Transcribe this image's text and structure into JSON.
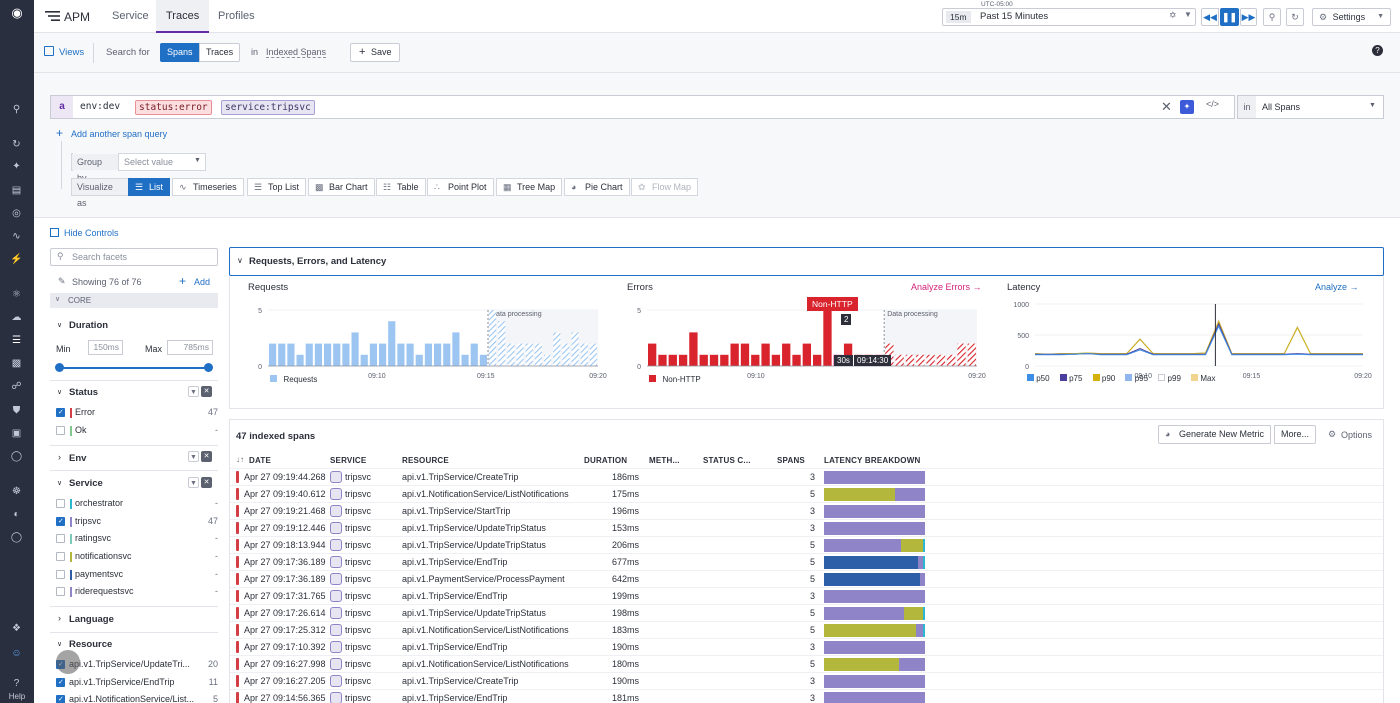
{
  "nav": {
    "help_label": "Help"
  },
  "topbar": {
    "app_title": "APM",
    "tabs": [
      {
        "label": "Service"
      },
      {
        "label": "Traces"
      },
      {
        "label": "Profiles"
      }
    ],
    "timezone": "UTC-05:00",
    "time_badge": "15m",
    "time_range": "Past 15 Minutes",
    "settings_label": "Settings"
  },
  "searchbar": {
    "views_label": "Views",
    "search_for_label": "Search for",
    "spans_label": "Spans",
    "traces_label": "Traces",
    "in_label": "in",
    "index_label": "Indexed Spans",
    "save_label": "Save"
  },
  "query": {
    "letter": "a",
    "tokens": [
      "env:dev",
      "status:error",
      "service:tripsvc"
    ],
    "in_label": "in",
    "scope_value": "All Spans",
    "add_query_label": "Add another span query",
    "group_by_label": "Group by",
    "group_by_placeholder": "Select value",
    "visualize_label": "Visualize as",
    "viz_options": [
      "List",
      "Timeseries",
      "Top List",
      "Bar Chart",
      "Table",
      "Point Plot",
      "Tree Map",
      "Pie Chart",
      "Flow Map"
    ]
  },
  "facets": {
    "hide_controls_label": "Hide Controls",
    "search_placeholder": "Search facets",
    "showing_label": "Showing 76 of 76",
    "add_label": "Add",
    "core_label": "CORE",
    "duration": {
      "title": "Duration",
      "min_label": "Min",
      "max_label": "Max",
      "min_value": "150ms",
      "max_value": "785ms"
    },
    "status": {
      "title": "Status",
      "items": [
        {
          "label": "Error",
          "count": "47",
          "checked": true,
          "color": "#d33d45"
        },
        {
          "label": "Ok",
          "count": "-",
          "checked": false,
          "color": "#7fc98d"
        }
      ]
    },
    "env": {
      "title": "Env"
    },
    "service": {
      "title": "Service",
      "items": [
        {
          "label": "orchestrator",
          "count": "-",
          "checked": false,
          "color": "#2bb7d1"
        },
        {
          "label": "tripsvc",
          "count": "47",
          "checked": true,
          "color": "#8f84c7"
        },
        {
          "label": "ratingsvc",
          "count": "-",
          "checked": false,
          "color": "#7fc9b8"
        },
        {
          "label": "notificationsvc",
          "count": "-",
          "checked": false,
          "color": "#b3b83c"
        },
        {
          "label": "paymentsvc",
          "count": "-",
          "checked": false,
          "color": "#2c5fa8"
        },
        {
          "label": "riderequestsvc",
          "count": "-",
          "checked": false,
          "color": "#8f84c7"
        }
      ]
    },
    "language": {
      "title": "Language"
    },
    "resource": {
      "title": "Resource",
      "items": [
        {
          "label": "api.v1.TripService/UpdateTri...",
          "count": "20"
        },
        {
          "label": "api.v1.TripService/EndTrip",
          "count": "11"
        },
        {
          "label": "api.v1.NotificationService/List...",
          "count": "5"
        }
      ]
    }
  },
  "charts_panel": {
    "title": "Requests, Errors, and Latency",
    "requests": {
      "title": "Requests",
      "legend": "Requests",
      "processing_label": "Data processing"
    },
    "errors": {
      "title": "Errors",
      "link": "Analyze Errors",
      "legend": "Non-HTTP",
      "processing_label": "Data processing",
      "tooltip_title": "Non-HTTP",
      "tooltip_value": "2",
      "tooltip_interval": "30s",
      "tooltip_time": "09:14:30"
    },
    "latency": {
      "title": "Latency",
      "link": "Analyze",
      "legend": [
        "p50",
        "p75",
        "p90",
        "p95",
        "p99",
        "Max"
      ]
    }
  },
  "chart_data": [
    {
      "type": "bar",
      "title": "Requests",
      "x_ticks": [
        "09:10",
        "09:15",
        "09:20"
      ],
      "ylim": [
        0,
        5
      ],
      "y_ticks": [
        "0",
        "5"
      ],
      "series": [
        {
          "name": "Requests",
          "values": [
            2,
            2,
            2,
            1,
            2,
            2,
            2,
            2,
            2,
            3,
            1,
            2,
            2,
            4,
            2,
            2,
            1,
            2,
            2,
            2,
            3,
            1,
            2,
            1,
            5,
            4,
            2,
            2,
            2,
            2,
            1,
            3,
            2,
            3,
            2,
            2
          ]
        }
      ],
      "processing_from_index": 24
    },
    {
      "type": "bar",
      "title": "Errors",
      "x_ticks": [
        "09:10",
        "09:20"
      ],
      "ylim": [
        0,
        5
      ],
      "y_ticks": [
        "0",
        "5"
      ],
      "series": [
        {
          "name": "Non-HTTP",
          "values": [
            2,
            1,
            1,
            1,
            3,
            1,
            1,
            1,
            2,
            2,
            1,
            2,
            1,
            2,
            1,
            2,
            1,
            5,
            1,
            2,
            1,
            1,
            1,
            2,
            1,
            1,
            1,
            1,
            1,
            1,
            2,
            2
          ]
        }
      ],
      "processing_from_index": 23
    },
    {
      "type": "line",
      "title": "Latency",
      "x_ticks": [
        "09:10",
        "09:15",
        "09:20"
      ],
      "ylim": [
        0,
        1000
      ],
      "y_ticks": [
        "0",
        "500",
        "1000"
      ],
      "series": [
        {
          "name": "p50",
          "values": [
            180,
            180,
            180,
            190,
            200,
            180,
            180,
            180,
            260,
            180,
            180,
            180,
            180,
            180,
            640,
            180,
            180,
            180,
            180,
            180,
            190,
            180,
            180,
            180,
            180,
            180
          ]
        },
        {
          "name": "p75",
          "values": [
            190,
            190,
            190,
            190,
            200,
            190,
            190,
            190,
            280,
            190,
            190,
            190,
            190,
            190,
            680,
            190,
            190,
            190,
            190,
            190,
            200,
            190,
            190,
            190,
            190,
            190
          ]
        },
        {
          "name": "p90",
          "values": [
            200,
            190,
            200,
            200,
            210,
            200,
            200,
            200,
            430,
            200,
            200,
            200,
            200,
            210,
            720,
            200,
            200,
            200,
            200,
            200,
            620,
            200,
            200,
            200,
            200,
            200
          ]
        },
        {
          "name": "p95",
          "values": [
            200,
            190,
            200,
            200,
            210,
            200,
            200,
            200,
            430,
            200,
            200,
            200,
            200,
            210,
            720,
            200,
            200,
            200,
            200,
            200,
            620,
            200,
            200,
            200,
            200,
            200
          ]
        },
        {
          "name": "p99",
          "values": [
            200,
            190,
            200,
            200,
            210,
            200,
            200,
            200,
            440,
            200,
            200,
            200,
            200,
            210,
            730,
            200,
            200,
            200,
            200,
            200,
            630,
            200,
            200,
            200,
            200,
            200
          ]
        },
        {
          "name": "Max",
          "values": [
            200,
            190,
            200,
            200,
            210,
            200,
            200,
            200,
            440,
            200,
            200,
            200,
            200,
            210,
            735,
            200,
            200,
            200,
            200,
            200,
            635,
            200,
            200,
            200,
            200,
            200
          ]
        }
      ]
    }
  ],
  "table": {
    "title": "47 indexed spans",
    "generate_metric_label": "Generate New Metric",
    "more_label": "More...",
    "options_label": "Options",
    "columns": [
      "DATE",
      "SERVICE",
      "RESOURCE",
      "DURATION",
      "METH...",
      "STATUS C...",
      "SPANS",
      "LATENCY BREAKDOWN"
    ],
    "rows": [
      {
        "date": "Apr 27 09:19:44.268",
        "service": "tripsvc",
        "resource": "api.v1.TripService/CreateTrip",
        "duration": "186ms",
        "spans": "3",
        "latency": [
          {
            "c": "#8f84c7",
            "w": 1
          }
        ]
      },
      {
        "date": "Apr 27 09:19:40.612",
        "service": "tripsvc",
        "resource": "api.v1.NotificationService/ListNotifications",
        "duration": "175ms",
        "spans": "5",
        "latency": [
          {
            "c": "#b3b83c",
            "w": 0.7
          },
          {
            "c": "#8f84c7",
            "w": 0.3
          }
        ]
      },
      {
        "date": "Apr 27 09:19:21.468",
        "service": "tripsvc",
        "resource": "api.v1.TripService/StartTrip",
        "duration": "196ms",
        "spans": "3",
        "latency": [
          {
            "c": "#8f84c7",
            "w": 1
          }
        ]
      },
      {
        "date": "Apr 27 09:19:12.446",
        "service": "tripsvc",
        "resource": "api.v1.TripService/UpdateTripStatus",
        "duration": "153ms",
        "spans": "3",
        "latency": [
          {
            "c": "#8f84c7",
            "w": 1
          }
        ]
      },
      {
        "date": "Apr 27 09:18:13.944",
        "service": "tripsvc",
        "resource": "api.v1.TripService/UpdateTripStatus",
        "duration": "206ms",
        "spans": "5",
        "latency": [
          {
            "c": "#8f84c7",
            "w": 0.76
          },
          {
            "c": "#b3b83c",
            "w": 0.22
          },
          {
            "c": "#2bb7d1",
            "w": 0.02
          }
        ]
      },
      {
        "date": "Apr 27 09:17:36.189",
        "service": "tripsvc",
        "resource": "api.v1.TripService/EndTrip",
        "duration": "677ms",
        "spans": "5",
        "latency": [
          {
            "c": "#2c5fa8",
            "w": 0.93
          },
          {
            "c": "#8f84c7",
            "w": 0.05
          },
          {
            "c": "#2bb7d1",
            "w": 0.02
          }
        ]
      },
      {
        "date": "Apr 27 09:17:36.189",
        "service": "tripsvc",
        "resource": "api.v1.PaymentService/ProcessPayment",
        "duration": "642ms",
        "spans": "5",
        "latency": [
          {
            "c": "#2c5fa8",
            "w": 0.95
          },
          {
            "c": "#8f84c7",
            "w": 0.05
          }
        ]
      },
      {
        "date": "Apr 27 09:17:31.765",
        "service": "tripsvc",
        "resource": "api.v1.TripService/EndTrip",
        "duration": "199ms",
        "spans": "3",
        "latency": [
          {
            "c": "#8f84c7",
            "w": 1
          }
        ]
      },
      {
        "date": "Apr 27 09:17:26.614",
        "service": "tripsvc",
        "resource": "api.v1.TripService/UpdateTripStatus",
        "duration": "198ms",
        "spans": "5",
        "latency": [
          {
            "c": "#8f84c7",
            "w": 0.79
          },
          {
            "c": "#b3b83c",
            "w": 0.19
          },
          {
            "c": "#2bb7d1",
            "w": 0.02
          }
        ]
      },
      {
        "date": "Apr 27 09:17:25.312",
        "service": "tripsvc",
        "resource": "api.v1.NotificationService/ListNotifications",
        "duration": "183ms",
        "spans": "5",
        "latency": [
          {
            "c": "#b3b83c",
            "w": 0.91
          },
          {
            "c": "#8f84c7",
            "w": 0.07
          },
          {
            "c": "#2bb7d1",
            "w": 0.02
          }
        ]
      },
      {
        "date": "Apr 27 09:17:10.392",
        "service": "tripsvc",
        "resource": "api.v1.TripService/EndTrip",
        "duration": "190ms",
        "spans": "3",
        "latency": [
          {
            "c": "#8f84c7",
            "w": 1
          }
        ]
      },
      {
        "date": "Apr 27 09:16:27.998",
        "service": "tripsvc",
        "resource": "api.v1.NotificationService/ListNotifications",
        "duration": "180ms",
        "spans": "5",
        "latency": [
          {
            "c": "#b3b83c",
            "w": 0.74
          },
          {
            "c": "#8f84c7",
            "w": 0.26
          }
        ]
      },
      {
        "date": "Apr 27 09:16:27.205",
        "service": "tripsvc",
        "resource": "api.v1.TripService/CreateTrip",
        "duration": "190ms",
        "spans": "3",
        "latency": [
          {
            "c": "#8f84c7",
            "w": 1
          }
        ]
      },
      {
        "date": "Apr 27 09:14:56.365",
        "service": "tripsvc",
        "resource": "api.v1.TripService/EndTrip",
        "duration": "181ms",
        "spans": "3",
        "latency": [
          {
            "c": "#8f84c7",
            "w": 1
          }
        ]
      }
    ]
  },
  "colors": {
    "accent": "#1f6fc5",
    "brand": "#632ca6",
    "nav_bg": "#2a2f40",
    "error": "#d33d45",
    "requests_bar": "#9cc6f1",
    "errors_bar": "#d9232d",
    "latency_series": [
      "#3d8ee6",
      "#4a3f9f",
      "#d5b20b",
      "#8fb7ee",
      "#d9dbe2",
      "#f1d48d"
    ]
  }
}
